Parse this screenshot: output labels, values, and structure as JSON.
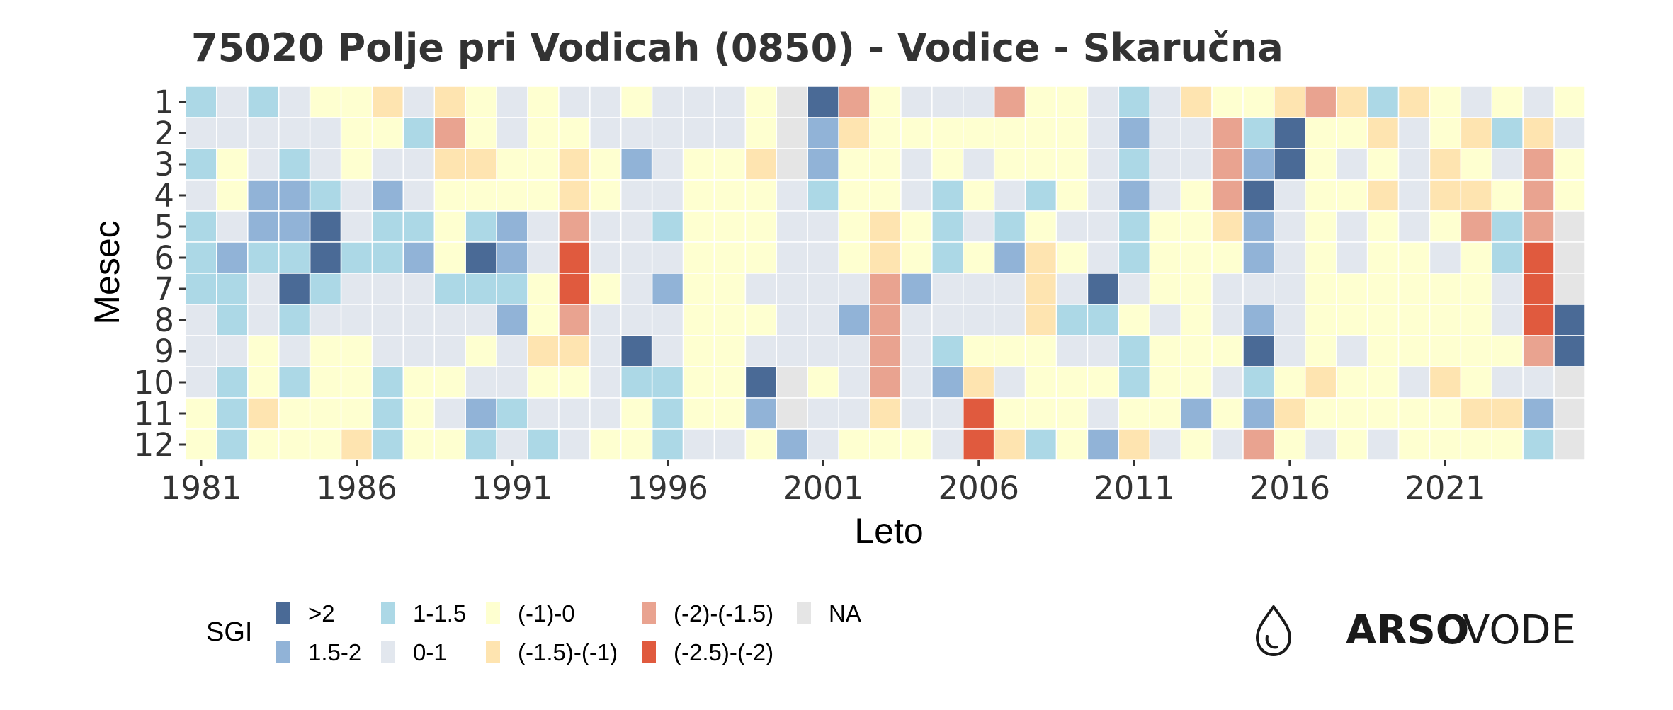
{
  "chart_data": {
    "type": "heatmap",
    "title": "75020 Polje pri Vodicah (0850) - Vodice - Skaručna",
    "xlabel": "Leto",
    "ylabel": "Mesec",
    "x_ticks": [
      "1981",
      "1986",
      "1991",
      "1996",
      "2001",
      "2006",
      "2011",
      "2016",
      "2021"
    ],
    "y_ticks": [
      "1",
      "2",
      "3",
      "4",
      "5",
      "6",
      "7",
      "8",
      "9",
      "10",
      "11",
      "12"
    ],
    "year_start": 1981,
    "year_end": 2025,
    "legend_title": "SGI",
    "legend_position": "bottom",
    "categories": [
      {
        "code": "A",
        "label": ">2",
        "color": "#4a6a96"
      },
      {
        "code": "B",
        "label": "1.5-2",
        "color": "#91b3d7"
      },
      {
        "code": "C",
        "label": "1-1.5",
        "color": "#acd8e6"
      },
      {
        "code": "D",
        "label": "0-1",
        "color": "#e2e7ee"
      },
      {
        "code": "E",
        "label": "(-1)-0",
        "color": "#feffd0"
      },
      {
        "code": "F",
        "label": "(-1.5)-(-1)",
        "color": "#fee4b0"
      },
      {
        "code": "G",
        "label": "(-2)-(-1.5)",
        "color": "#e9a390"
      },
      {
        "code": "H",
        "label": "(-2.5)-(-2)",
        "color": "#e05a3e"
      },
      {
        "code": "N",
        "label": "NA",
        "color": "#e5e5e5"
      }
    ],
    "rows_month_1_to_12_codes_by_year_1981_to_2025": [
      "CDCDEEFDFEDEDDEDDDENAGEDDDGEEDCDFEEFGFCFEDEDE",
      "DDDDDEECGEDEEDDDDDENBFEEEEEEEDBDDGCAEEFDEFCFD",
      "CEDCDEDDFFEEFEBDEEFNBEEDEDEEEDCDDGBAEDEDFEDGE",
      "DEBBCDBDEEEEFEDDEEEDCEEDCEDCEDBDEGADEEFDFFEGE",
      "CDBBADCCECBDGDDCEEEDDEFECDCEDDCEEFBDEDEDEGCGN",
      "CBCCACCBEABDHDDDEEEDDEFECEBFEDCEEEBDEDEEDECHN",
      "CCDACDDDCCCEHEDBEEDDDDGBDDDFDADEEDDDEEEEEEDHN",
      "DCDCDDDDDDBEGDDDEEEDDBGDDDDFCCEDEDBDEEEEEEDHA",
      "DDEDEEDDDEDFFDADEEDDDDGDCEEEDDCEEEADEDEEEEEGA",
      "DCECEECEEDDEEDCCEEANEDGDBFDEEECEEDCEFEEDFEDDN",
      "ECFEEECEDBCDDDECEEBNDDFDDHEEEDEEBEBFEEEEEFFBN",
      "ECEEEFCEECDCDEECDDEBDEEEDHFCEBFDEDGEDEDEEEECN"
    ]
  },
  "brand": {
    "bold": "ARSO",
    "light": "VODE"
  }
}
